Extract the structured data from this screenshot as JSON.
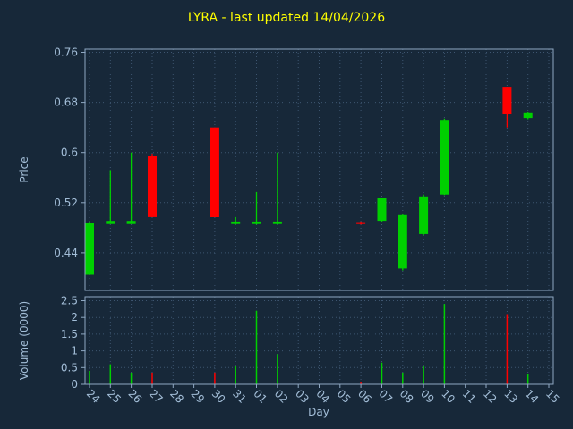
{
  "title": "LYRA - last updated 14/04/2026",
  "axis_labels": {
    "price": "Price",
    "volume": "Volume (0000)",
    "x": "Day"
  },
  "colors": {
    "background": "#172839",
    "title": "#ffff00",
    "label": "#a3bed8",
    "frame": "#8fa8c2",
    "grid": "#3d5570",
    "up": "#00d000",
    "down": "#ff0000"
  },
  "chart_data": {
    "type": "candlestick",
    "title": "LYRA - last updated 14/04/2026",
    "xlabel": "Day",
    "ylabel": "Price",
    "ylabel2": "Volume (0000)",
    "legend": null,
    "grid": "dotted",
    "x_labels": [
      "24",
      "25",
      "26",
      "27",
      "28",
      "29",
      "30",
      "31",
      "01",
      "02",
      "03",
      "04",
      "05",
      "06",
      "07",
      "08",
      "09",
      "10",
      "11",
      "12",
      "13",
      "14",
      "15"
    ],
    "price_ylim": [
      0.38,
      0.765
    ],
    "price_ticks": [
      {
        "v": 0.76,
        "label": "0.76"
      },
      {
        "v": 0.68,
        "label": "0.68"
      },
      {
        "v": 0.6,
        "label": "0.6"
      },
      {
        "v": 0.52,
        "label": "0.52"
      },
      {
        "v": 0.44,
        "label": "0.44"
      }
    ],
    "volume_ylim": [
      0,
      2.62
    ],
    "volume_ticks": [
      {
        "v": 2.5,
        "label": "2.5"
      },
      {
        "v": 2,
        "label": "2"
      },
      {
        "v": 1.5,
        "label": "1.5"
      },
      {
        "v": 1,
        "label": "1"
      },
      {
        "v": 0.5,
        "label": "0.5"
      },
      {
        "v": 0,
        "label": "0"
      }
    ],
    "candles": [
      {
        "day": "24",
        "open": 0.405,
        "close": 0.488,
        "high": 0.49,
        "low": 0.405,
        "dir": "up"
      },
      {
        "day": "25",
        "open": 0.486,
        "close": 0.491,
        "high": 0.572,
        "low": 0.486,
        "dir": "up"
      },
      {
        "day": "26",
        "open": 0.486,
        "close": 0.491,
        "high": 0.6,
        "low": 0.486,
        "dir": "up"
      },
      {
        "day": "27",
        "open": 0.594,
        "close": 0.497,
        "high": 0.598,
        "low": 0.497,
        "dir": "down"
      },
      {
        "day": "30",
        "open": 0.64,
        "close": 0.497,
        "high": 0.64,
        "low": 0.497,
        "dir": "down"
      },
      {
        "day": "31",
        "open": 0.486,
        "close": 0.49,
        "high": 0.497,
        "low": 0.485,
        "dir": "up"
      },
      {
        "day": "01",
        "open": 0.486,
        "close": 0.49,
        "high": 0.537,
        "low": 0.485,
        "dir": "up"
      },
      {
        "day": "02",
        "open": 0.486,
        "close": 0.49,
        "high": 0.6,
        "low": 0.485,
        "dir": "up"
      },
      {
        "day": "06",
        "open": 0.489,
        "close": 0.486,
        "high": 0.49,
        "low": 0.485,
        "dir": "down"
      },
      {
        "day": "07",
        "open": 0.491,
        "close": 0.527,
        "high": 0.528,
        "low": 0.49,
        "dir": "up"
      },
      {
        "day": "08",
        "open": 0.415,
        "close": 0.5,
        "high": 0.501,
        "low": 0.412,
        "dir": "up"
      },
      {
        "day": "09",
        "open": 0.47,
        "close": 0.53,
        "high": 0.533,
        "low": 0.468,
        "dir": "up"
      },
      {
        "day": "10",
        "open": 0.533,
        "close": 0.652,
        "high": 0.654,
        "low": 0.532,
        "dir": "up"
      },
      {
        "day": "13",
        "open": 0.705,
        "close": 0.662,
        "high": 0.705,
        "low": 0.64,
        "dir": "down"
      },
      {
        "day": "14",
        "open": 0.655,
        "close": 0.664,
        "high": 0.665,
        "low": 0.653,
        "dir": "up"
      }
    ],
    "volumes": [
      {
        "day": "24",
        "value": 0.4,
        "dir": "up"
      },
      {
        "day": "25",
        "value": 0.6,
        "dir": "up"
      },
      {
        "day": "26",
        "value": 0.35,
        "dir": "up"
      },
      {
        "day": "27",
        "value": 0.35,
        "dir": "down"
      },
      {
        "day": "30",
        "value": 0.35,
        "dir": "down"
      },
      {
        "day": "31",
        "value": 0.55,
        "dir": "up"
      },
      {
        "day": "01",
        "value": 2.2,
        "dir": "up"
      },
      {
        "day": "02",
        "value": 0.9,
        "dir": "up"
      },
      {
        "day": "06",
        "value": 0.08,
        "dir": "down"
      },
      {
        "day": "07",
        "value": 0.65,
        "dir": "up"
      },
      {
        "day": "08",
        "value": 0.35,
        "dir": "up"
      },
      {
        "day": "09",
        "value": 0.55,
        "dir": "up"
      },
      {
        "day": "10",
        "value": 2.4,
        "dir": "up"
      },
      {
        "day": "13",
        "value": 2.1,
        "dir": "down"
      },
      {
        "day": "14",
        "value": 0.3,
        "dir": "up"
      }
    ]
  }
}
